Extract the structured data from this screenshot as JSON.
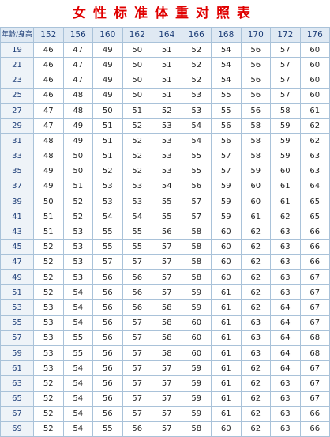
{
  "title": "女性标准体重对照表",
  "corner_label": "年龄/身高",
  "heights": [
    "152",
    "156",
    "160",
    "162",
    "164",
    "166",
    "168",
    "170",
    "172",
    "176"
  ],
  "rows": [
    {
      "age": "19",
      "values": [
        "46",
        "47",
        "49",
        "50",
        "51",
        "52",
        "54",
        "56",
        "57",
        "60"
      ]
    },
    {
      "age": "21",
      "values": [
        "46",
        "47",
        "49",
        "50",
        "51",
        "52",
        "54",
        "56",
        "57",
        "60"
      ]
    },
    {
      "age": "23",
      "values": [
        "46",
        "47",
        "49",
        "50",
        "51",
        "52",
        "54",
        "56",
        "57",
        "60"
      ]
    },
    {
      "age": "25",
      "values": [
        "46",
        "48",
        "49",
        "50",
        "51",
        "53",
        "55",
        "56",
        "57",
        "60"
      ]
    },
    {
      "age": "27",
      "values": [
        "47",
        "48",
        "50",
        "51",
        "52",
        "53",
        "55",
        "56",
        "58",
        "61"
      ]
    },
    {
      "age": "29",
      "values": [
        "47",
        "49",
        "51",
        "52",
        "53",
        "54",
        "56",
        "58",
        "59",
        "62"
      ]
    },
    {
      "age": "31",
      "values": [
        "48",
        "49",
        "51",
        "52",
        "53",
        "54",
        "56",
        "58",
        "59",
        "62"
      ]
    },
    {
      "age": "33",
      "values": [
        "48",
        "50",
        "51",
        "52",
        "53",
        "55",
        "57",
        "58",
        "59",
        "63"
      ]
    },
    {
      "age": "35",
      "values": [
        "49",
        "50",
        "52",
        "52",
        "53",
        "55",
        "57",
        "59",
        "60",
        "63"
      ]
    },
    {
      "age": "37",
      "values": [
        "49",
        "51",
        "53",
        "53",
        "54",
        "56",
        "59",
        "60",
        "61",
        "64"
      ]
    },
    {
      "age": "39",
      "values": [
        "50",
        "52",
        "53",
        "53",
        "55",
        "57",
        "59",
        "60",
        "61",
        "65"
      ]
    },
    {
      "age": "41",
      "values": [
        "51",
        "52",
        "54",
        "54",
        "55",
        "57",
        "59",
        "61",
        "62",
        "65"
      ]
    },
    {
      "age": "43",
      "values": [
        "51",
        "53",
        "55",
        "55",
        "56",
        "58",
        "60",
        "62",
        "63",
        "66"
      ]
    },
    {
      "age": "45",
      "values": [
        "52",
        "53",
        "55",
        "55",
        "57",
        "58",
        "60",
        "62",
        "63",
        "66"
      ]
    },
    {
      "age": "47",
      "values": [
        "52",
        "53",
        "57",
        "57",
        "57",
        "58",
        "60",
        "62",
        "63",
        "66"
      ]
    },
    {
      "age": "49",
      "values": [
        "52",
        "53",
        "56",
        "56",
        "57",
        "58",
        "60",
        "62",
        "63",
        "67"
      ]
    },
    {
      "age": "51",
      "values": [
        "52",
        "54",
        "56",
        "56",
        "57",
        "59",
        "61",
        "62",
        "63",
        "67"
      ]
    },
    {
      "age": "53",
      "values": [
        "53",
        "54",
        "56",
        "56",
        "58",
        "59",
        "61",
        "62",
        "64",
        "67"
      ]
    },
    {
      "age": "55",
      "values": [
        "53",
        "54",
        "56",
        "57",
        "58",
        "60",
        "61",
        "63",
        "64",
        "67"
      ]
    },
    {
      "age": "57",
      "values": [
        "53",
        "55",
        "56",
        "57",
        "58",
        "60",
        "61",
        "63",
        "64",
        "68"
      ]
    },
    {
      "age": "59",
      "values": [
        "53",
        "55",
        "56",
        "57",
        "58",
        "60",
        "61",
        "63",
        "64",
        "68"
      ]
    },
    {
      "age": "61",
      "values": [
        "53",
        "54",
        "56",
        "57",
        "57",
        "59",
        "61",
        "62",
        "64",
        "67"
      ]
    },
    {
      "age": "63",
      "values": [
        "52",
        "54",
        "56",
        "57",
        "57",
        "59",
        "61",
        "62",
        "63",
        "67"
      ]
    },
    {
      "age": "65",
      "values": [
        "52",
        "54",
        "56",
        "57",
        "57",
        "59",
        "61",
        "62",
        "63",
        "67"
      ]
    },
    {
      "age": "67",
      "values": [
        "52",
        "54",
        "56",
        "57",
        "57",
        "59",
        "61",
        "62",
        "63",
        "66"
      ]
    },
    {
      "age": "69",
      "values": [
        "52",
        "54",
        "55",
        "56",
        "57",
        "58",
        "60",
        "62",
        "63",
        "66"
      ]
    }
  ]
}
